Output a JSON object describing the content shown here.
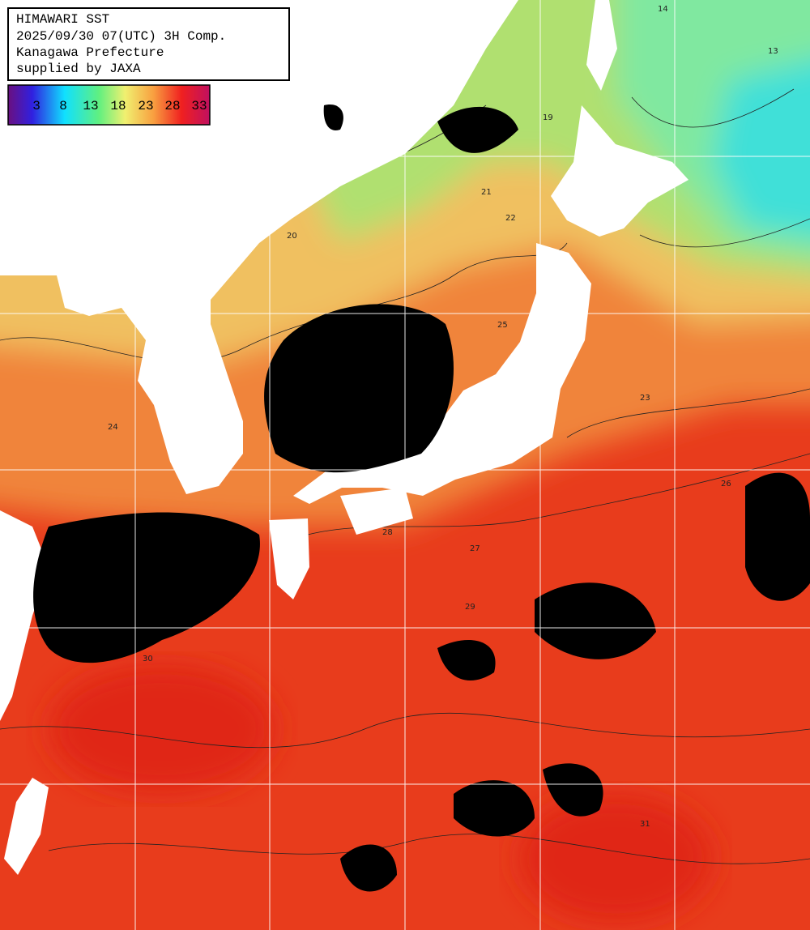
{
  "header": {
    "lines": [
      "HIMAWARI SST",
      "2025/09/30 07(UTC) 3H Comp.",
      "Kanagawa Prefecture",
      "supplied by JAXA"
    ]
  },
  "legend": {
    "labels": [
      "3",
      "8",
      "13",
      "18",
      "23",
      "28",
      "33"
    ]
  },
  "contour_labels": [
    "14",
    "13",
    "19",
    "21",
    "22",
    "20",
    "23",
    "24",
    "25",
    "26",
    "27",
    "28",
    "29",
    "30",
    "31"
  ]
}
